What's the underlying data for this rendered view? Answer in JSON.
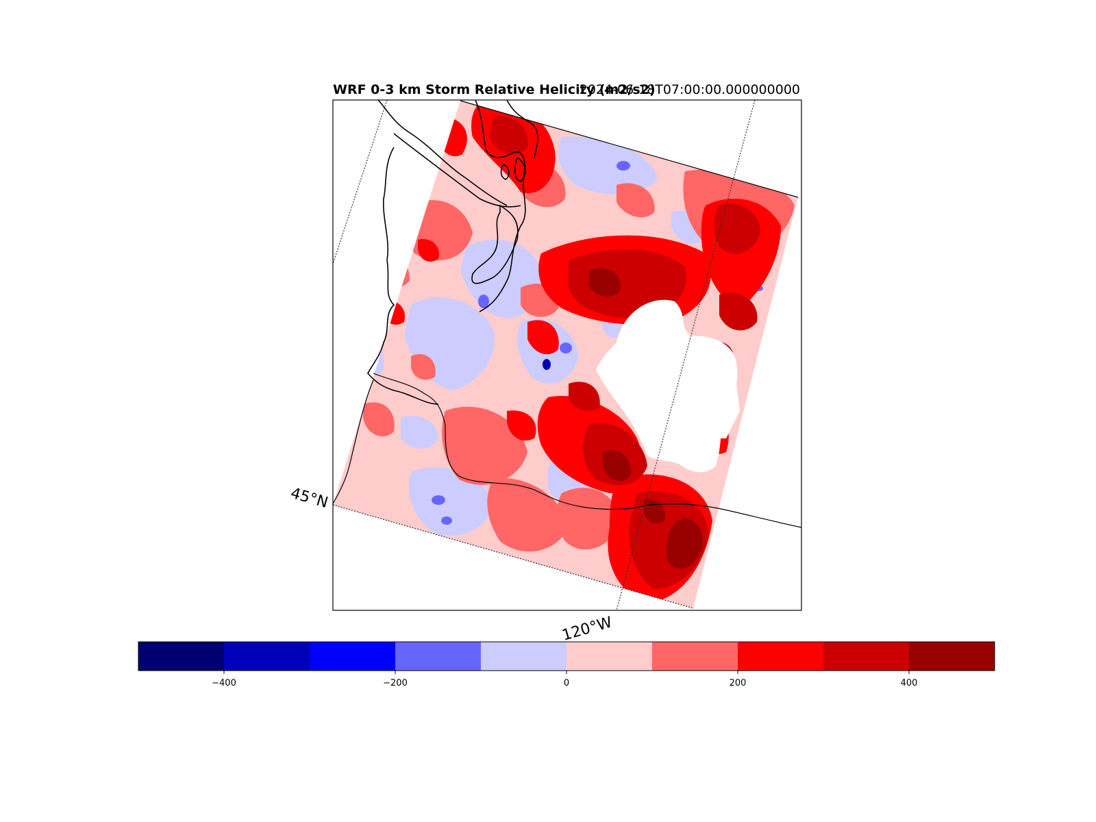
{
  "title": {
    "main": "WRF 0-3 km Storm Relative Helicity (m2/s2)",
    "time": "2024-06-18T07:00:00.000000000"
  },
  "map": {
    "labels": {
      "lat": "45°N",
      "lon": "120°W"
    },
    "colors": {
      "background": "#ffffff",
      "coast": "#000000",
      "missing": "#ffffff"
    }
  },
  "colorbar": {
    "levels": [
      -500,
      -400,
      -300,
      -200,
      -100,
      0,
      100,
      200,
      300,
      400,
      500
    ],
    "colors": [
      "#000070",
      "#0000b8",
      "#0000ff",
      "#6666ff",
      "#ccccff",
      "#ffcccc",
      "#ff6666",
      "#ff0000",
      "#cc0000",
      "#990000"
    ],
    "ticks": [
      {
        "value": -400,
        "label": "−400"
      },
      {
        "value": -200,
        "label": "−200"
      },
      {
        "value": 0,
        "label": "0"
      },
      {
        "value": 200,
        "label": "200"
      },
      {
        "value": 400,
        "label": "400"
      }
    ]
  }
}
